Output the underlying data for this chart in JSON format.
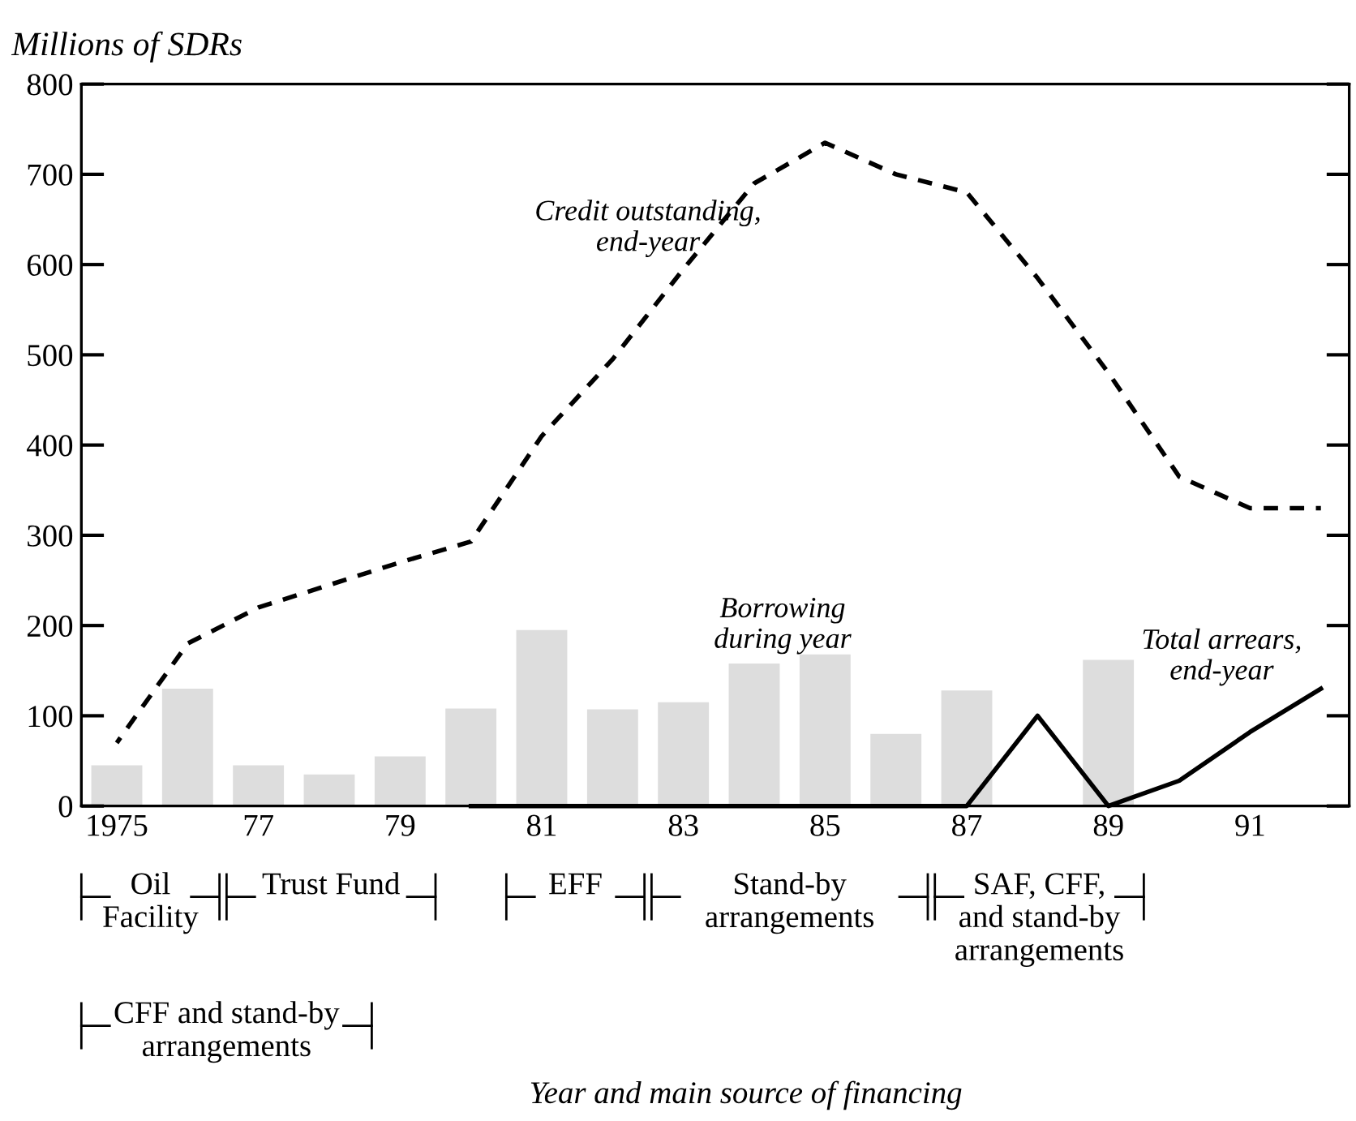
{
  "chart_data": {
    "type": "bar",
    "ylabel": "Millions of SDRs",
    "x": [
      1975,
      1976,
      1977,
      1978,
      1979,
      1980,
      1981,
      1982,
      1983,
      1984,
      1985,
      1986,
      1987,
      1988,
      1989,
      1990,
      1991,
      1992
    ],
    "series": [
      {
        "name": "Borrowing\nduring year",
        "color": "#dddddd",
        "values": [
          45,
          130,
          45,
          35,
          55,
          108,
          195,
          107,
          115,
          158,
          168,
          80,
          128,
          null,
          162,
          null,
          null,
          null
        ]
      },
      {
        "name": "Credit outstanding,\nend-year",
        "type": "line",
        "line_style": "dashed",
        "color": "#000000",
        "values": [
          70,
          180,
          220,
          245,
          270,
          293,
          410,
          495,
          595,
          690,
          735,
          700,
          680,
          585,
          480,
          365,
          330,
          330
        ]
      },
      {
        "name": "Total arrears,\nend-year",
        "type": "line",
        "line_style": "solid",
        "color": "#000000",
        "values": [
          null,
          null,
          null,
          null,
          null,
          0,
          0,
          0,
          0,
          0,
          0,
          0,
          0,
          100,
          0,
          28,
          82,
          130
        ]
      }
    ],
    "xlim": [
      1974.5,
      1992.4
    ],
    "ylim": [
      0,
      800
    ],
    "yticks": [
      0,
      100,
      200,
      300,
      400,
      500,
      600,
      700,
      800
    ],
    "xticks": [
      {
        "value": 1975,
        "label": "1975"
      },
      {
        "value": 1977,
        "label": "77"
      },
      {
        "value": 1979,
        "label": "79"
      },
      {
        "value": 1981,
        "label": "81"
      },
      {
        "value": 1983,
        "label": "83"
      },
      {
        "value": 1985,
        "label": "85"
      },
      {
        "value": 1987,
        "label": "87"
      },
      {
        "value": 1989,
        "label": "89"
      },
      {
        "value": 1991,
        "label": "91"
      }
    ],
    "grid": false,
    "annotations": [
      "Oil\nFacility",
      "Trust Fund",
      "EFF",
      "Stand-by\narrangements",
      "SAF, CFF,\nand stand-by\narrangements",
      "CFF and stand-by\narrangements",
      "Year and main source of financing"
    ]
  }
}
